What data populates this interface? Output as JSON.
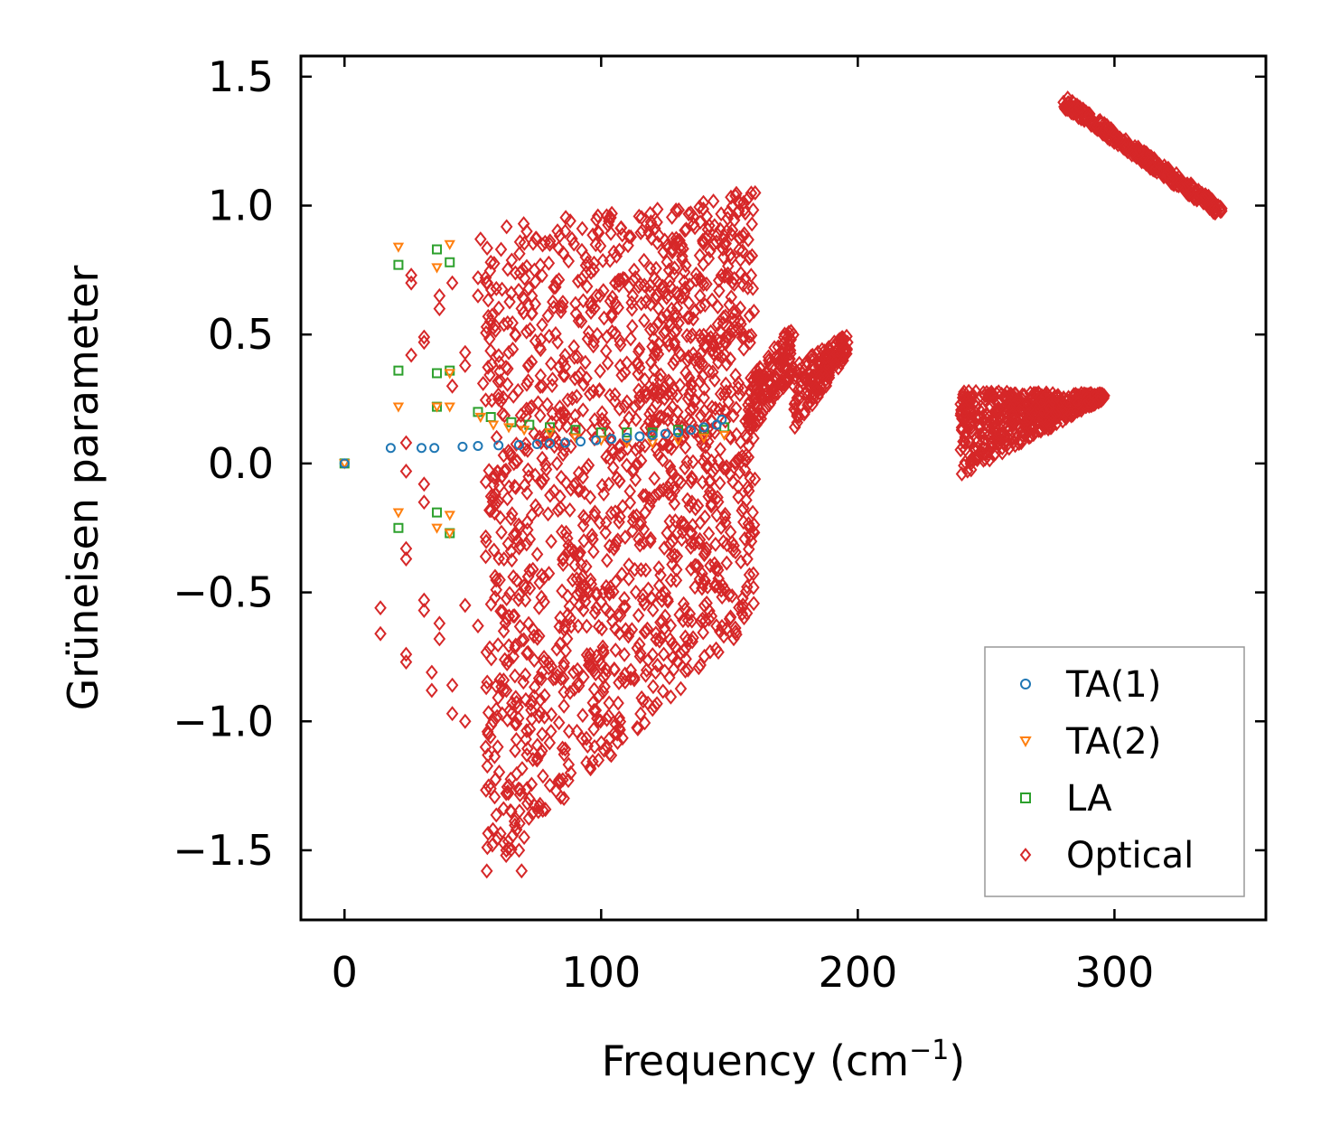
{
  "chart_data": {
    "type": "scatter",
    "title": "",
    "xlabel": "Frequency (cm",
    "xlabel_sup": "−1",
    "xlabel_suffix": ")",
    "ylabel": "Grüneisen parameter",
    "xlim": [
      -17,
      359
    ],
    "ylim": [
      -1.77,
      1.58
    ],
    "xticks": [
      0,
      100,
      200,
      300
    ],
    "xtick_labels": [
      "0",
      "100",
      "200",
      "300"
    ],
    "yticks": [
      -1.5,
      -1.0,
      -0.5,
      0.0,
      0.5,
      1.0,
      1.5
    ],
    "ytick_labels": [
      "−1.5",
      "−1.0",
      "−0.5",
      "0.0",
      "0.5",
      "1.0",
      "1.5"
    ],
    "grid": false,
    "legend_position": "lower-right",
    "series": [
      {
        "name": "TA(1)",
        "marker": "circle",
        "color": "#1f77b4",
        "points": [
          [
            0,
            0.0
          ],
          [
            18,
            0.06
          ],
          [
            30,
            0.06
          ],
          [
            35,
            0.06
          ],
          [
            46,
            0.065
          ],
          [
            52,
            0.068
          ],
          [
            60,
            0.07
          ],
          [
            68,
            0.072
          ],
          [
            75,
            0.075
          ],
          [
            80,
            0.078
          ],
          [
            86,
            0.08
          ],
          [
            92,
            0.085
          ],
          [
            98,
            0.09
          ],
          [
            104,
            0.095
          ],
          [
            110,
            0.1
          ],
          [
            115,
            0.105
          ],
          [
            120,
            0.11
          ],
          [
            125,
            0.115
          ],
          [
            130,
            0.12
          ],
          [
            135,
            0.13
          ],
          [
            140,
            0.14
          ],
          [
            145,
            0.15
          ],
          [
            147,
            0.17
          ]
        ]
      },
      {
        "name": "TA(2)",
        "marker": "triangle-down",
        "color": "#ff7f0e",
        "points": [
          [
            0,
            0.0
          ],
          [
            21,
            0.84
          ],
          [
            36,
            0.76
          ],
          [
            41,
            0.85
          ],
          [
            41,
            0.35
          ],
          [
            21,
            0.22
          ],
          [
            36,
            0.22
          ],
          [
            41,
            0.22
          ],
          [
            53,
            0.18
          ],
          [
            58,
            0.15
          ],
          [
            64,
            0.14
          ],
          [
            70,
            0.13
          ],
          [
            80,
            0.12
          ],
          [
            90,
            0.1
          ],
          [
            100,
            0.09
          ],
          [
            110,
            0.08
          ],
          [
            120,
            0.08
          ],
          [
            130,
            0.09
          ],
          [
            140,
            0.1
          ],
          [
            148,
            0.11
          ],
          [
            21,
            -0.19
          ],
          [
            36,
            -0.25
          ],
          [
            41,
            -0.2
          ],
          [
            41,
            -0.27
          ]
        ]
      },
      {
        "name": "LA",
        "marker": "square",
        "color": "#2ca02c",
        "points": [
          [
            0,
            0.0
          ],
          [
            21,
            0.77
          ],
          [
            36,
            0.83
          ],
          [
            41,
            0.78
          ],
          [
            21,
            0.36
          ],
          [
            36,
            0.35
          ],
          [
            41,
            0.36
          ],
          [
            36,
            0.22
          ],
          [
            52,
            0.2
          ],
          [
            57,
            0.18
          ],
          [
            65,
            0.16
          ],
          [
            72,
            0.15
          ],
          [
            80,
            0.14
          ],
          [
            90,
            0.13
          ],
          [
            100,
            0.12
          ],
          [
            110,
            0.12
          ],
          [
            120,
            0.12
          ],
          [
            130,
            0.13
          ],
          [
            140,
            0.13
          ],
          [
            148,
            0.14
          ],
          [
            21,
            -0.25
          ],
          [
            36,
            -0.19
          ],
          [
            41,
            -0.27
          ]
        ]
      },
      {
        "name": "Optical",
        "marker": "diamond",
        "color": "#d62728",
        "points": [
          [
            14,
            -0.56
          ],
          [
            14,
            -0.66
          ],
          [
            24,
            -0.74
          ],
          [
            24,
            -0.77
          ],
          [
            24,
            -0.37
          ],
          [
            24,
            -0.33
          ],
          [
            24,
            -0.03
          ],
          [
            24,
            0.08
          ],
          [
            26,
            0.42
          ],
          [
            26,
            0.7
          ],
          [
            26,
            0.73
          ],
          [
            31,
            0.47
          ],
          [
            31,
            0.49
          ],
          [
            31,
            -0.08
          ],
          [
            31,
            -0.15
          ],
          [
            31,
            -0.53
          ],
          [
            31,
            -0.57
          ],
          [
            34,
            -0.81
          ],
          [
            34,
            -0.88
          ],
          [
            37,
            0.6
          ],
          [
            37,
            0.65
          ],
          [
            37,
            -0.68
          ],
          [
            37,
            -0.62
          ],
          [
            42,
            0.3
          ],
          [
            42,
            0.7
          ],
          [
            42,
            -0.97
          ],
          [
            42,
            -0.86
          ],
          [
            47,
            0.43
          ],
          [
            47,
            0.38
          ],
          [
            47,
            -1.0
          ],
          [
            47,
            -0.55
          ],
          [
            52,
            0.65
          ],
          [
            52,
            0.72
          ],
          [
            52,
            -0.63
          ],
          [
            53,
            0.87
          ],
          [
            54,
            0.31
          ],
          [
            55,
            -1.1
          ],
          [
            56,
            0.57
          ],
          [
            57,
            0.78
          ],
          [
            58,
            -1.0
          ],
          [
            60,
            0.25
          ],
          [
            61,
            0.83
          ],
          [
            62,
            -0.84
          ],
          [
            63,
            -1.28
          ],
          [
            64,
            0.43
          ],
          [
            65,
            -1.35
          ],
          [
            66,
            0.0
          ],
          [
            67,
            -1.42
          ],
          [
            68,
            -1.5
          ],
          [
            69,
            -1.58
          ],
          [
            70,
            -1.45
          ],
          [
            71,
            0.9
          ],
          [
            72,
            -1.3
          ],
          [
            73,
            -0.2
          ],
          [
            74,
            0.75
          ],
          [
            75,
            -1.15
          ],
          [
            76,
            0.45
          ],
          [
            77,
            -1.05
          ],
          [
            78,
            -0.9
          ],
          [
            80,
            0.85
          ],
          [
            82,
            0.1
          ],
          [
            84,
            -0.7
          ],
          [
            86,
            0.9
          ],
          [
            88,
            -0.6
          ],
          [
            90,
            0.62
          ],
          [
            92,
            -0.5
          ],
          [
            94,
            0.8
          ]
        ],
        "clusters": [
          {
            "x": [
              55,
              160
            ],
            "y_top_start": 0.92,
            "y_top_end": 1.06,
            "y_bottom_start": -1.6,
            "y_bottom_end": -0.6,
            "count": 1500
          },
          {
            "x": [
              157,
              175
            ],
            "y_top_start": 0.32,
            "y_top_end": 0.55,
            "y_bottom_start": 0.1,
            "y_bottom_end": 0.35,
            "count": 140
          },
          {
            "x": [
              175,
              196
            ],
            "y_top_start": 0.38,
            "y_top_end": 0.5,
            "y_bottom_start": 0.12,
            "y_bottom_end": 0.42,
            "count": 160
          },
          {
            "x": [
              240,
              296
            ],
            "y_top_start": 0.28,
            "y_top_end": 0.27,
            "y_bottom_start": -0.05,
            "y_bottom_end": 0.25,
            "count": 520
          },
          {
            "x": [
              280,
              342
            ],
            "y_top_start": 1.43,
            "y_top_end": 1.0,
            "y_bottom_start": 1.38,
            "y_bottom_end": 0.95,
            "count": 340
          }
        ]
      }
    ]
  }
}
